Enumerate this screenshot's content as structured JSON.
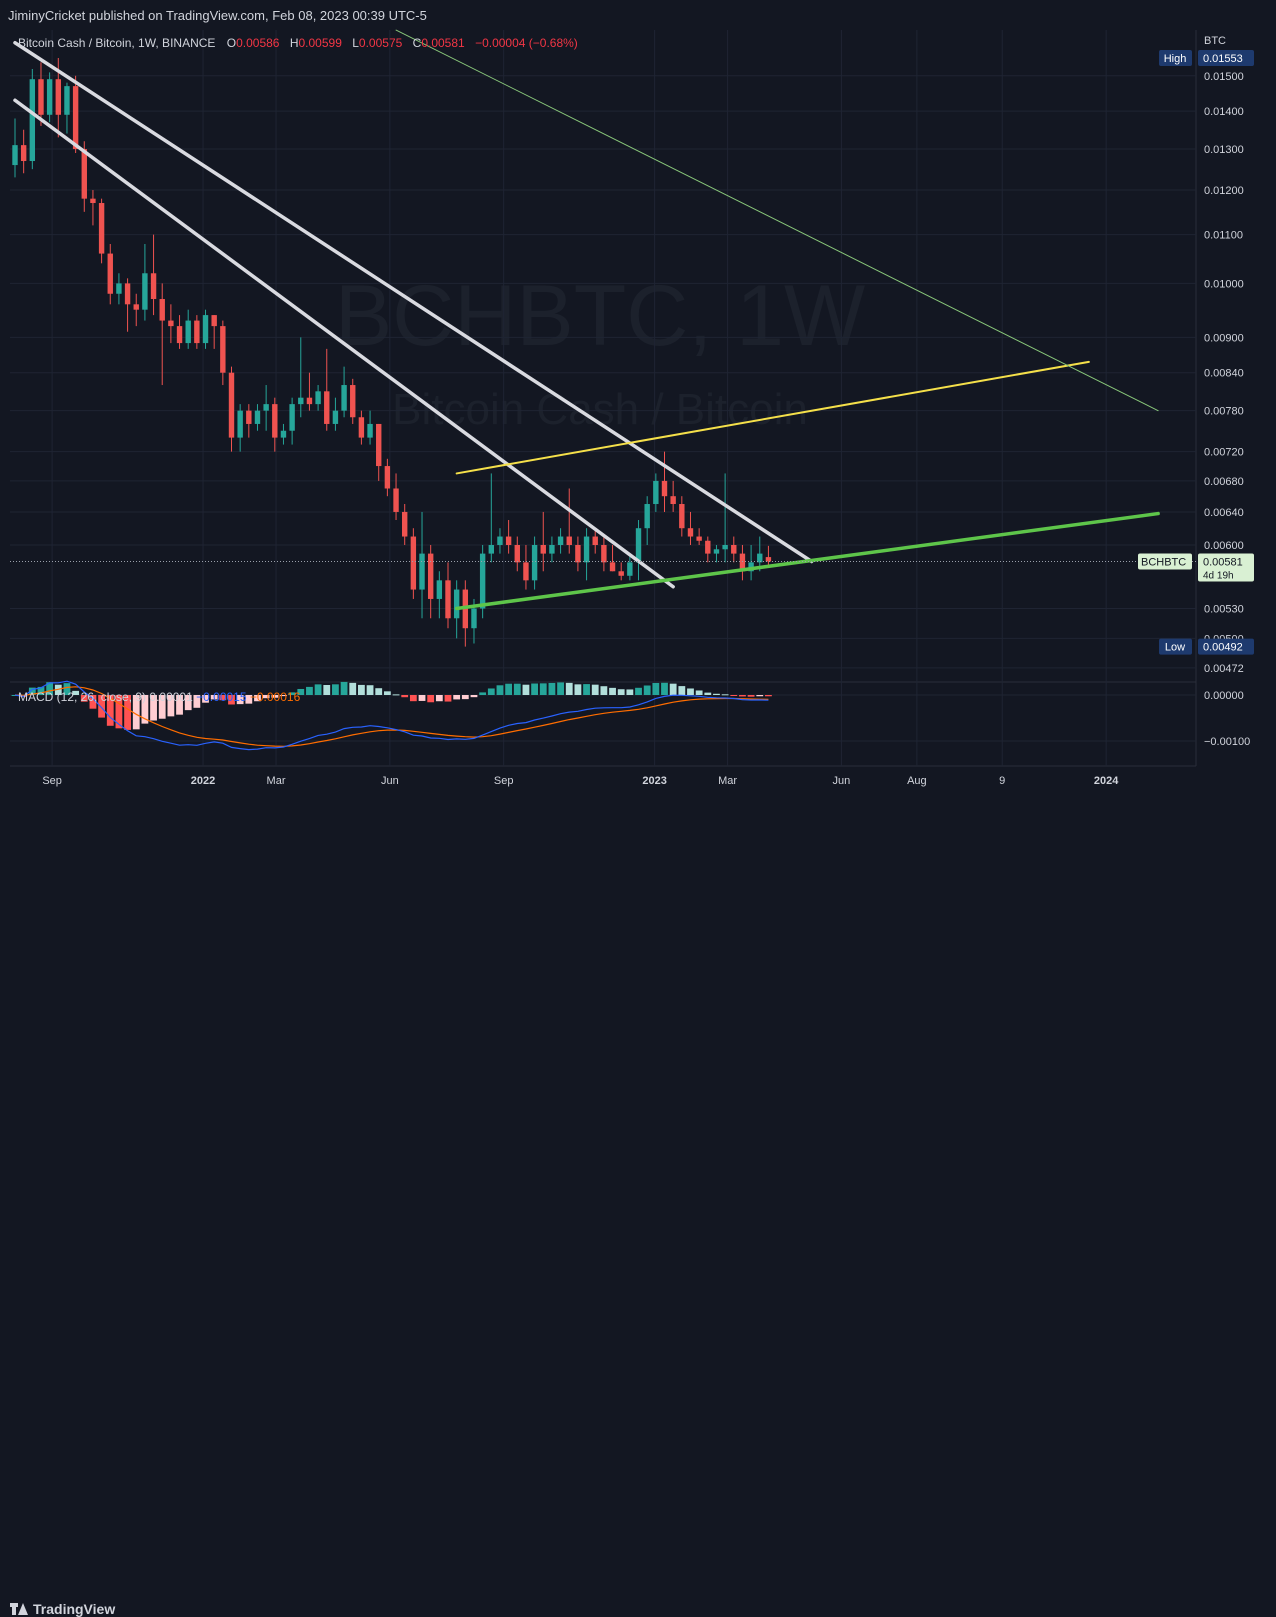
{
  "header": {
    "publisher_line": "JiminyCricket published on TradingView.com, Feb 08, 2023 00:39 UTC-5"
  },
  "legend": {
    "symbol": "Bitcoin Cash / Bitcoin, 1W, BINANCE",
    "o_label": "O",
    "o_value": "0.00586",
    "h_label": "H",
    "h_value": "0.00599",
    "l_label": "L",
    "l_value": "0.00575",
    "c_label": "C",
    "c_value": "0.00581",
    "change": "−0.00004 (−0.68%)"
  },
  "watermark": {
    "symbol": "BCHBTC, 1W",
    "name": "Bitcoin Cash / Bitcoin"
  },
  "footer": {
    "brand": "TradingView"
  },
  "colors": {
    "background": "#131722",
    "grid": "#1f2433",
    "text": "#d1d4dc",
    "up": "#26a69a",
    "down": "#ef5350",
    "channel": "#d9dae0",
    "support": "#5ec54a",
    "wedge": "#f5e04a",
    "thin_trend": "#89c77a",
    "macd": "#2962ff",
    "signal": "#ff6d00"
  },
  "chart_data": [
    {
      "type": "candlestick",
      "title": "",
      "symbol": "BCHBTC",
      "interval": "1W",
      "exchange": "BINANCE",
      "currency_label": "BTC",
      "log_scale": true,
      "grid": true,
      "ylim": [
        0.0046,
        0.016
      ],
      "x_ticks": [
        {
          "label": "Sep",
          "date": "2021-09-01",
          "bold": false
        },
        {
          "label": "2022",
          "date": "2022-01-01",
          "bold": true
        },
        {
          "label": "Mar",
          "date": "2022-03-01",
          "bold": false
        },
        {
          "label": "Jun",
          "date": "2022-06-01",
          "bold": false
        },
        {
          "label": "Sep",
          "date": "2022-09-01",
          "bold": false
        },
        {
          "label": "2023",
          "date": "2023-01-01",
          "bold": true
        },
        {
          "label": "Mar",
          "date": "2023-03-01",
          "bold": false
        },
        {
          "label": "Jun",
          "date": "2023-06-01",
          "bold": false
        },
        {
          "label": "Aug",
          "date": "2023-08-01",
          "bold": false
        },
        {
          "label": "9",
          "date": "2023-10-09",
          "bold": false
        },
        {
          "label": "2024",
          "date": "2024-01-01",
          "bold": true
        }
      ],
      "y_ticks": [
        "0.01500",
        "0.01400",
        "0.01300",
        "0.01200",
        "0.01100",
        "0.01000",
        "0.00900",
        "0.00840",
        "0.00780",
        "0.00720",
        "0.00680",
        "0.00640",
        "0.00600",
        "0.00530",
        "0.00500",
        "0.00472"
      ],
      "high_marker": {
        "label": "High",
        "value": "0.01553"
      },
      "low_marker": {
        "label": "Low",
        "value": "0.00492"
      },
      "last_price": {
        "label": "BCHBTC",
        "value": "0.00581",
        "countdown": "4d 19h"
      },
      "candles": [
        {
          "date": "2021-08-02",
          "o": 0.0126,
          "h": 0.0138,
          "l": 0.0123,
          "c": 0.0131
        },
        {
          "date": "2021-08-09",
          "o": 0.0131,
          "h": 0.0135,
          "l": 0.0124,
          "c": 0.0127
        },
        {
          "date": "2021-08-16",
          "o": 0.0127,
          "h": 0.0152,
          "l": 0.0125,
          "c": 0.0149
        },
        {
          "date": "2021-08-23",
          "o": 0.0149,
          "h": 0.0154,
          "l": 0.0136,
          "c": 0.0139
        },
        {
          "date": "2021-08-30",
          "o": 0.0139,
          "h": 0.0151,
          "l": 0.0137,
          "c": 0.0149
        },
        {
          "date": "2021-09-06",
          "o": 0.0149,
          "h": 0.01553,
          "l": 0.0133,
          "c": 0.0139
        },
        {
          "date": "2021-09-13",
          "o": 0.0139,
          "h": 0.0148,
          "l": 0.0134,
          "c": 0.0147
        },
        {
          "date": "2021-09-20",
          "o": 0.0147,
          "h": 0.015,
          "l": 0.0129,
          "c": 0.013
        },
        {
          "date": "2021-09-27",
          "o": 0.013,
          "h": 0.0132,
          "l": 0.0115,
          "c": 0.0118
        },
        {
          "date": "2021-10-04",
          "o": 0.0118,
          "h": 0.012,
          "l": 0.0112,
          "c": 0.0117
        },
        {
          "date": "2021-10-11",
          "o": 0.0117,
          "h": 0.0118,
          "l": 0.0104,
          "c": 0.0106
        },
        {
          "date": "2021-10-18",
          "o": 0.0106,
          "h": 0.0108,
          "l": 0.0096,
          "c": 0.0098
        },
        {
          "date": "2021-10-25",
          "o": 0.0098,
          "h": 0.0102,
          "l": 0.0096,
          "c": 0.01
        },
        {
          "date": "2021-11-01",
          "o": 0.01,
          "h": 0.0101,
          "l": 0.0091,
          "c": 0.0096
        },
        {
          "date": "2021-11-08",
          "o": 0.0096,
          "h": 0.0098,
          "l": 0.0092,
          "c": 0.0095
        },
        {
          "date": "2021-11-15",
          "o": 0.0095,
          "h": 0.0108,
          "l": 0.0093,
          "c": 0.0102
        },
        {
          "date": "2021-11-22",
          "o": 0.0102,
          "h": 0.011,
          "l": 0.0094,
          "c": 0.0097
        },
        {
          "date": "2021-11-29",
          "o": 0.0097,
          "h": 0.01,
          "l": 0.0082,
          "c": 0.0093
        },
        {
          "date": "2021-12-06",
          "o": 0.0093,
          "h": 0.0096,
          "l": 0.0089,
          "c": 0.0092
        },
        {
          "date": "2021-12-13",
          "o": 0.0092,
          "h": 0.0094,
          "l": 0.0088,
          "c": 0.0089
        },
        {
          "date": "2021-12-20",
          "o": 0.0089,
          "h": 0.0095,
          "l": 0.0088,
          "c": 0.0093
        },
        {
          "date": "2021-12-27",
          "o": 0.0093,
          "h": 0.0094,
          "l": 0.0088,
          "c": 0.0089
        },
        {
          "date": "2022-01-03",
          "o": 0.0089,
          "h": 0.0095,
          "l": 0.0088,
          "c": 0.0094
        },
        {
          "date": "2022-01-10",
          "o": 0.0094,
          "h": 0.0094,
          "l": 0.0088,
          "c": 0.0092
        },
        {
          "date": "2022-01-17",
          "o": 0.0092,
          "h": 0.0093,
          "l": 0.0082,
          "c": 0.0084
        },
        {
          "date": "2022-01-24",
          "o": 0.0084,
          "h": 0.0085,
          "l": 0.0072,
          "c": 0.0074
        },
        {
          "date": "2022-01-31",
          "o": 0.0074,
          "h": 0.0079,
          "l": 0.0072,
          "c": 0.0078
        },
        {
          "date": "2022-02-07",
          "o": 0.0078,
          "h": 0.0079,
          "l": 0.0074,
          "c": 0.0076
        },
        {
          "date": "2022-02-14",
          "o": 0.0076,
          "h": 0.0079,
          "l": 0.0075,
          "c": 0.0078
        },
        {
          "date": "2022-02-21",
          "o": 0.0078,
          "h": 0.0082,
          "l": 0.0075,
          "c": 0.0079
        },
        {
          "date": "2022-02-28",
          "o": 0.0079,
          "h": 0.008,
          "l": 0.0072,
          "c": 0.0074
        },
        {
          "date": "2022-03-07",
          "o": 0.0074,
          "h": 0.0076,
          "l": 0.0073,
          "c": 0.0075
        },
        {
          "date": "2022-03-14",
          "o": 0.0075,
          "h": 0.008,
          "l": 0.0073,
          "c": 0.0079
        },
        {
          "date": "2022-03-21",
          "o": 0.0079,
          "h": 0.009,
          "l": 0.0077,
          "c": 0.008
        },
        {
          "date": "2022-03-28",
          "o": 0.008,
          "h": 0.0084,
          "l": 0.0078,
          "c": 0.0079
        },
        {
          "date": "2022-04-04",
          "o": 0.0079,
          "h": 0.0082,
          "l": 0.0078,
          "c": 0.0081
        },
        {
          "date": "2022-04-11",
          "o": 0.0081,
          "h": 0.0088,
          "l": 0.0075,
          "c": 0.0076
        },
        {
          "date": "2022-04-18",
          "o": 0.0076,
          "h": 0.008,
          "l": 0.0075,
          "c": 0.0078
        },
        {
          "date": "2022-04-25",
          "o": 0.0078,
          "h": 0.0085,
          "l": 0.0077,
          "c": 0.0082
        },
        {
          "date": "2022-05-02",
          "o": 0.0082,
          "h": 0.0083,
          "l": 0.0076,
          "c": 0.0077
        },
        {
          "date": "2022-05-09",
          "o": 0.0077,
          "h": 0.0078,
          "l": 0.0073,
          "c": 0.0074
        },
        {
          "date": "2022-05-16",
          "o": 0.0074,
          "h": 0.0078,
          "l": 0.0073,
          "c": 0.0076
        },
        {
          "date": "2022-05-23",
          "o": 0.0076,
          "h": 0.0076,
          "l": 0.0068,
          "c": 0.007
        },
        {
          "date": "2022-05-30",
          "o": 0.007,
          "h": 0.0071,
          "l": 0.0066,
          "c": 0.0067
        },
        {
          "date": "2022-06-06",
          "o": 0.0067,
          "h": 0.0069,
          "l": 0.0063,
          "c": 0.0064
        },
        {
          "date": "2022-06-13",
          "o": 0.0064,
          "h": 0.0065,
          "l": 0.006,
          "c": 0.0061
        },
        {
          "date": "2022-06-20",
          "o": 0.0061,
          "h": 0.0062,
          "l": 0.0054,
          "c": 0.0055
        },
        {
          "date": "2022-06-27",
          "o": 0.0055,
          "h": 0.0064,
          "l": 0.0052,
          "c": 0.0059
        },
        {
          "date": "2022-07-04",
          "o": 0.0059,
          "h": 0.006,
          "l": 0.0052,
          "c": 0.0054
        },
        {
          "date": "2022-07-11",
          "o": 0.0054,
          "h": 0.0057,
          "l": 0.0052,
          "c": 0.0056
        },
        {
          "date": "2022-07-18",
          "o": 0.0056,
          "h": 0.0058,
          "l": 0.0051,
          "c": 0.0052
        },
        {
          "date": "2022-07-25",
          "o": 0.0052,
          "h": 0.0056,
          "l": 0.005,
          "c": 0.0055
        },
        {
          "date": "2022-08-01",
          "o": 0.0055,
          "h": 0.0056,
          "l": 0.00492,
          "c": 0.0051
        },
        {
          "date": "2022-08-08",
          "o": 0.0051,
          "h": 0.0054,
          "l": 0.00495,
          "c": 0.0053
        },
        {
          "date": "2022-08-15",
          "o": 0.0053,
          "h": 0.006,
          "l": 0.0052,
          "c": 0.0059
        },
        {
          "date": "2022-08-22",
          "o": 0.0059,
          "h": 0.0069,
          "l": 0.0058,
          "c": 0.006
        },
        {
          "date": "2022-08-29",
          "o": 0.006,
          "h": 0.0062,
          "l": 0.0059,
          "c": 0.0061
        },
        {
          "date": "2022-09-05",
          "o": 0.0061,
          "h": 0.0063,
          "l": 0.0059,
          "c": 0.006
        },
        {
          "date": "2022-09-12",
          "o": 0.006,
          "h": 0.0061,
          "l": 0.0057,
          "c": 0.0058
        },
        {
          "date": "2022-09-19",
          "o": 0.0058,
          "h": 0.006,
          "l": 0.0055,
          "c": 0.0056
        },
        {
          "date": "2022-09-26",
          "o": 0.0056,
          "h": 0.0061,
          "l": 0.0055,
          "c": 0.006
        },
        {
          "date": "2022-10-03",
          "o": 0.006,
          "h": 0.0064,
          "l": 0.0057,
          "c": 0.0059
        },
        {
          "date": "2022-10-10",
          "o": 0.0059,
          "h": 0.0061,
          "l": 0.0058,
          "c": 0.006
        },
        {
          "date": "2022-10-17",
          "o": 0.006,
          "h": 0.0062,
          "l": 0.0059,
          "c": 0.0061
        },
        {
          "date": "2022-10-24",
          "o": 0.0061,
          "h": 0.0067,
          "l": 0.0059,
          "c": 0.006
        },
        {
          "date": "2022-10-31",
          "o": 0.006,
          "h": 0.0061,
          "l": 0.0057,
          "c": 0.0058
        },
        {
          "date": "2022-11-07",
          "o": 0.0058,
          "h": 0.0062,
          "l": 0.0056,
          "c": 0.0061
        },
        {
          "date": "2022-11-14",
          "o": 0.0061,
          "h": 0.0062,
          "l": 0.0059,
          "c": 0.006
        },
        {
          "date": "2022-11-21",
          "o": 0.006,
          "h": 0.0061,
          "l": 0.0057,
          "c": 0.0058
        },
        {
          "date": "2022-11-28",
          "o": 0.0058,
          "h": 0.006,
          "l": 0.0057,
          "c": 0.0057
        },
        {
          "date": "2022-12-05",
          "o": 0.0057,
          "h": 0.0058,
          "l": 0.0056,
          "c": 0.00565
        },
        {
          "date": "2022-12-12",
          "o": 0.00565,
          "h": 0.0059,
          "l": 0.0056,
          "c": 0.0058
        },
        {
          "date": "2022-12-19",
          "o": 0.0058,
          "h": 0.0063,
          "l": 0.0056,
          "c": 0.0062
        },
        {
          "date": "2022-12-26",
          "o": 0.0062,
          "h": 0.0066,
          "l": 0.006,
          "c": 0.0065
        },
        {
          "date": "2023-01-02",
          "o": 0.0065,
          "h": 0.0069,
          "l": 0.0064,
          "c": 0.0068
        },
        {
          "date": "2023-01-09",
          "o": 0.0068,
          "h": 0.0072,
          "l": 0.0064,
          "c": 0.0066
        },
        {
          "date": "2023-01-16",
          "o": 0.0066,
          "h": 0.0068,
          "l": 0.0064,
          "c": 0.0065
        },
        {
          "date": "2023-01-23",
          "o": 0.0065,
          "h": 0.0066,
          "l": 0.0061,
          "c": 0.0062
        },
        {
          "date": "2023-01-30",
          "o": 0.0062,
          "h": 0.0064,
          "l": 0.006,
          "c": 0.0061
        },
        {
          "date": "2023-02-06",
          "o": 0.0061,
          "h": 0.0062,
          "l": 0.006,
          "c": 0.00605
        },
        {
          "date": "2023-02-13",
          "o": 0.00605,
          "h": 0.0061,
          "l": 0.0058,
          "c": 0.0059
        },
        {
          "date": "2023-02-20",
          "o": 0.0059,
          "h": 0.006,
          "l": 0.0058,
          "c": 0.00595
        },
        {
          "date": "2023-02-27",
          "o": 0.00595,
          "h": 0.0069,
          "l": 0.0058,
          "c": 0.006
        },
        {
          "date": "2023-03-06",
          "o": 0.006,
          "h": 0.0061,
          "l": 0.0058,
          "c": 0.0059
        },
        {
          "date": "2023-03-13",
          "o": 0.0059,
          "h": 0.006,
          "l": 0.0056,
          "c": 0.0057
        },
        {
          "date": "2023-03-20",
          "o": 0.0057,
          "h": 0.006,
          "l": 0.0056,
          "c": 0.0058
        },
        {
          "date": "2023-03-27",
          "o": 0.0058,
          "h": 0.0061,
          "l": 0.0057,
          "c": 0.0059
        },
        {
          "date": "2023-04-03",
          "o": 0.00586,
          "h": 0.00599,
          "l": 0.00575,
          "c": 0.00581
        }
      ],
      "drawings": [
        {
          "name": "upper-channel-line",
          "color": "#d9dae0",
          "width": 3.5,
          "from": {
            "date": "2021-08-02",
            "price": 0.016
          },
          "to": {
            "date": "2023-05-08",
            "price": 0.00581
          }
        },
        {
          "name": "lower-channel-line",
          "color": "#d9dae0",
          "width": 3.5,
          "from": {
            "date": "2021-08-02",
            "price": 0.0143
          },
          "to": {
            "date": "2023-01-16",
            "price": 0.00553
          }
        },
        {
          "name": "green-support-line",
          "color": "#5ec54a",
          "width": 3.5,
          "from": {
            "date": "2022-07-25",
            "price": 0.0053
          },
          "to": {
            "date": "2024-02-12",
            "price": 0.00638
          }
        },
        {
          "name": "yellow-wedge-line",
          "color": "#f5e04a",
          "width": 2,
          "from": {
            "date": "2022-07-25",
            "price": 0.0069
          },
          "to": {
            "date": "2023-12-18",
            "price": 0.00858
          }
        },
        {
          "name": "thin-green-trend-line",
          "color": "#89c77a",
          "width": 1,
          "from": {
            "date": "2022-06-06",
            "price": 0.0164
          },
          "to": {
            "date": "2024-02-12",
            "price": 0.0078
          }
        }
      ]
    },
    {
      "type": "macd",
      "title": "",
      "label": "MACD (12, 26, close, 9)",
      "hist_label": "0.00001",
      "macd_label": "−0.00015",
      "signal_label": "−0.00016",
      "y_ticks": [
        "0.00000",
        "−0.00100"
      ],
      "ylim": [
        -0.00165,
        0.0003
      ]
    }
  ]
}
